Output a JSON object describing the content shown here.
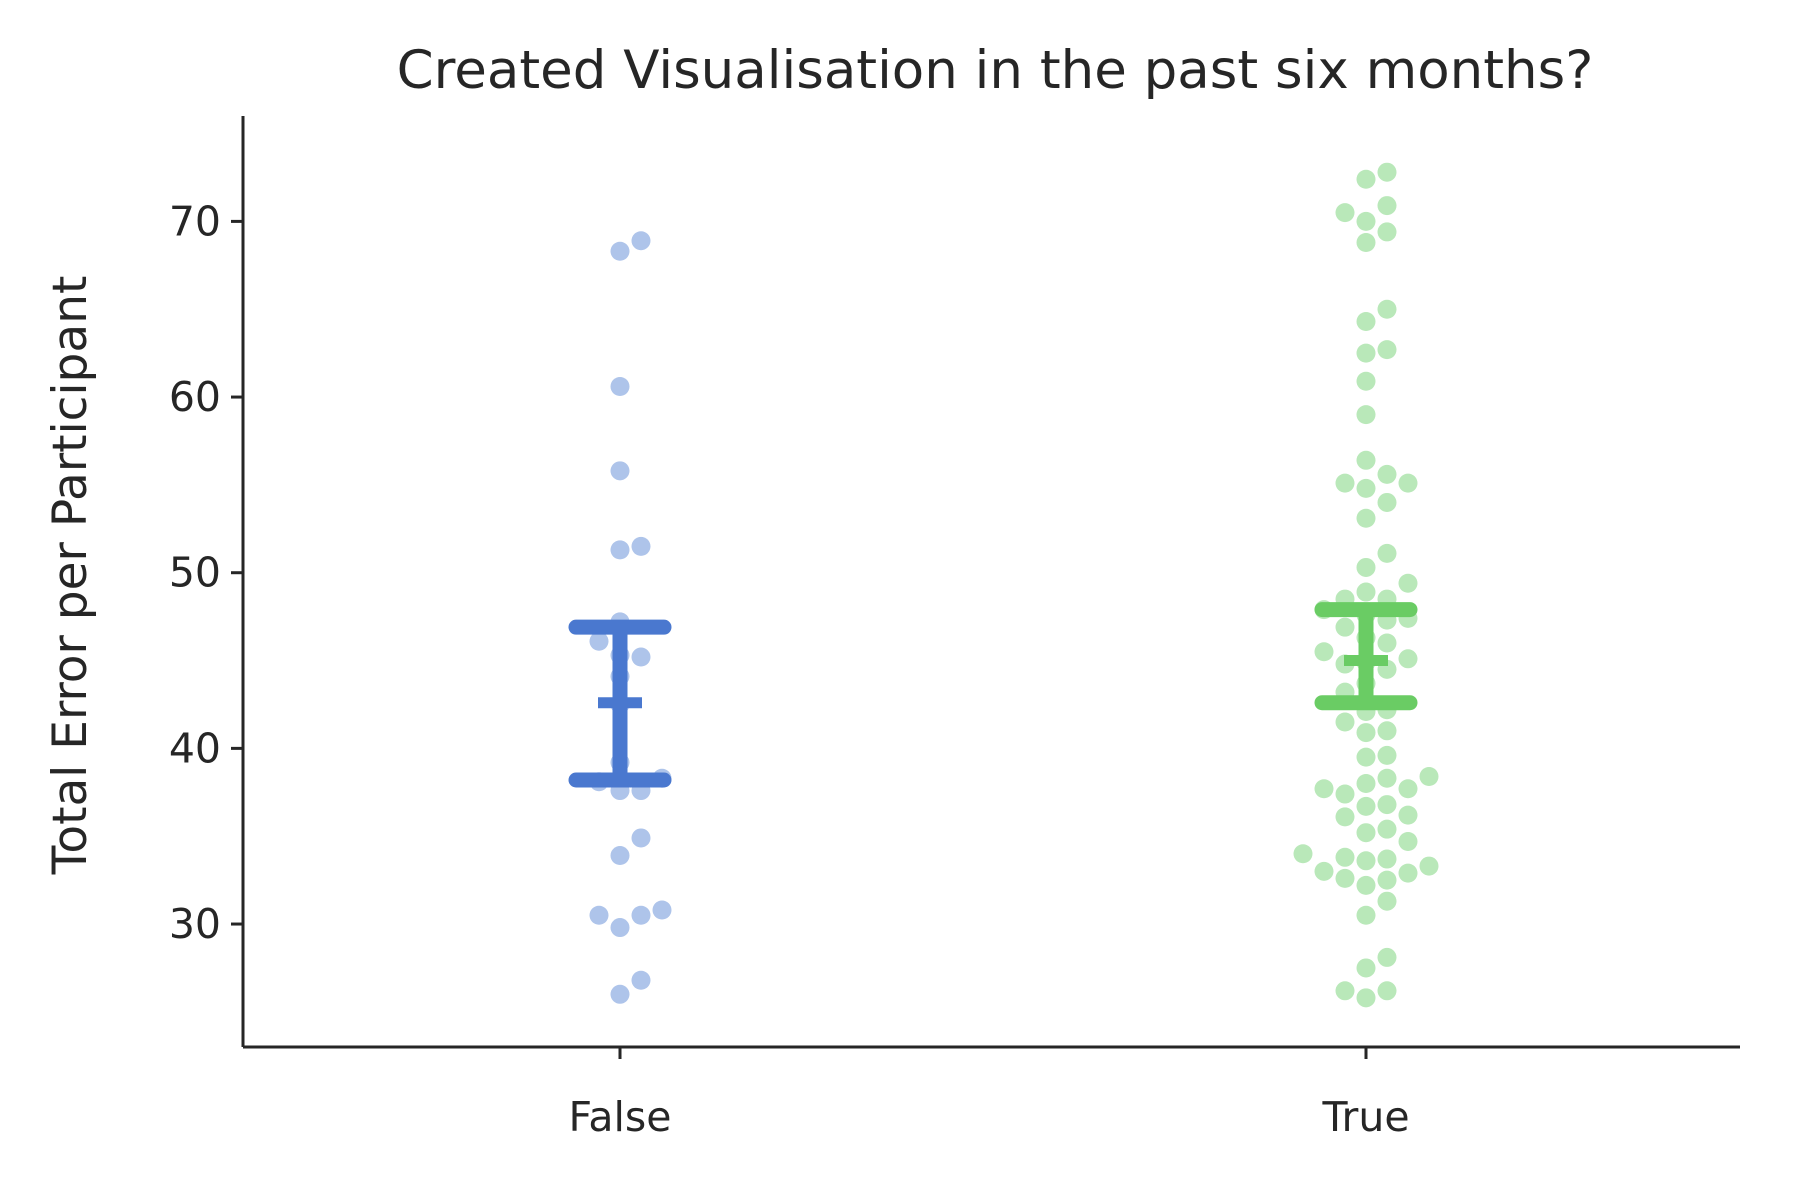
{
  "chart_data": {
    "type": "scatter",
    "subtype": "swarm with mean and confidence interval",
    "title": "Created Visualisation in the past six months?",
    "xlabel": "",
    "ylabel": "Total Error per Participant",
    "ylim": [
      23,
      76
    ],
    "yticks": [
      30,
      40,
      50,
      60,
      70
    ],
    "categories": [
      "False",
      "True"
    ],
    "grid": false,
    "legend": "none",
    "series": [
      {
        "category": "False",
        "point_color": "#aec4ea",
        "interval_color": "#4a78cf",
        "values": [
          68.9,
          68.3,
          60.6,
          55.8,
          51.5,
          51.3,
          47.2,
          46.1,
          45.3,
          45.2,
          44.1,
          42.5,
          39.2,
          38.3,
          38.1,
          37.6,
          37.6,
          34.9,
          33.9,
          30.8,
          30.5,
          30.5,
          29.8,
          26.8,
          26.0
        ],
        "mean": 42.6,
        "ci": [
          38.2,
          46.9
        ]
      },
      {
        "category": "True",
        "point_color": "#b9e8b9",
        "interval_color": "#6acc64",
        "values": [
          72.8,
          72.4,
          70.9,
          70.5,
          70.0,
          69.4,
          68.8,
          65.0,
          64.3,
          62.7,
          62.5,
          60.9,
          59.0,
          56.4,
          55.6,
          55.1,
          55.1,
          54.8,
          54.0,
          53.1,
          51.1,
          50.3,
          49.4,
          48.9,
          48.5,
          48.5,
          47.9,
          47.6,
          47.4,
          47.3,
          46.9,
          46.3,
          46.0,
          45.5,
          45.1,
          44.9,
          44.8,
          44.5,
          43.7,
          43.2,
          42.2,
          42.1,
          41.5,
          41.0,
          40.9,
          39.6,
          39.5,
          38.4,
          38.3,
          38.0,
          37.7,
          37.7,
          37.4,
          36.8,
          36.7,
          36.2,
          36.1,
          35.4,
          35.2,
          34.7,
          34.0,
          33.8,
          33.7,
          33.6,
          33.3,
          33.0,
          32.9,
          32.6,
          32.5,
          32.2,
          31.3,
          30.5,
          28.1,
          27.5,
          26.2,
          26.2,
          25.8
        ],
        "mean": 45.0,
        "ci": [
          42.6,
          47.9
        ]
      }
    ]
  }
}
